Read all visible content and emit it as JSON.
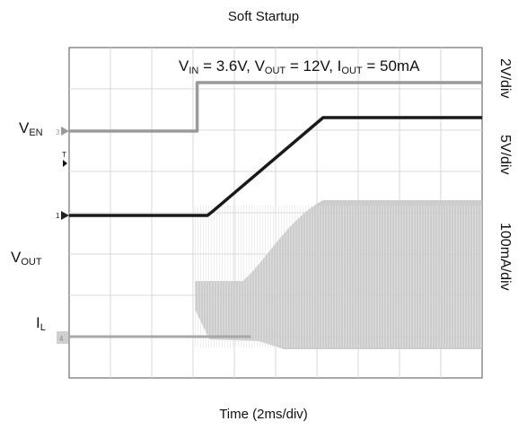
{
  "chart_data": {
    "type": "line",
    "title": "Soft Startup",
    "xlabel": "Time (2ms/div)",
    "annotation": {
      "vin_sym": "V",
      "vin_sub": "IN",
      "vin_val": " = 3.6V, ",
      "vout_sym": "V",
      "vout_sub": "OUT",
      "vout_val": " = 12V, ",
      "iout_sym": "I",
      "iout_sub": "OUT",
      "iout_val": " = 50mA"
    },
    "grid": {
      "x_divisions": 10,
      "y_divisions": 8
    },
    "scales": [
      "2V/div",
      "5V/div",
      "100mA/div"
    ],
    "channel_markers": {
      "ch3": "3",
      "ch1": "1",
      "trigger": "T",
      "ch4": "4"
    },
    "series": [
      {
        "sym": "V",
        "sub": "EN",
        "color": "#9a9a9a",
        "x": [
          0,
          3.1,
          3.1,
          10
        ],
        "y": [
          0,
          0,
          1.2,
          1.2
        ]
      },
      {
        "sym": "V",
        "sub": "OUT",
        "color": "#1a1a1a",
        "x": [
          0,
          3.35,
          3.45,
          6.15,
          10
        ],
        "y": [
          0,
          0,
          0.4,
          12,
          12
        ]
      },
      {
        "sym": "I",
        "sub": "L",
        "color": "#c8c8c8",
        "x": [
          0,
          4.4,
          4.6,
          6.15,
          10
        ],
        "y": [
          0,
          0,
          0,
          300,
          300
        ]
      }
    ]
  }
}
